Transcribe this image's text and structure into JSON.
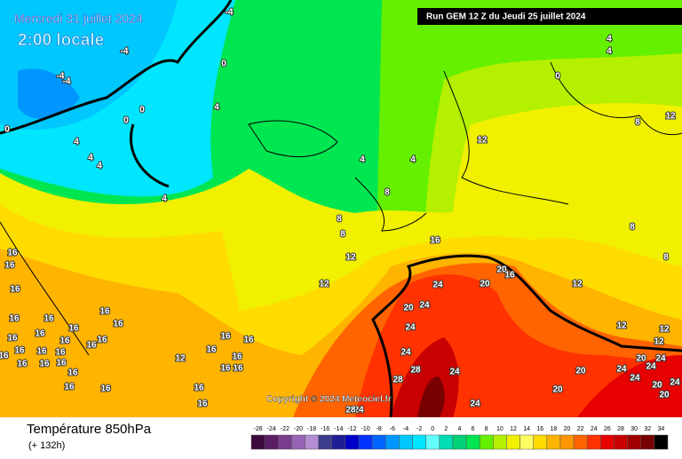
{
  "header": {
    "title": "Mercredi 31 juillet 2024",
    "subtitle": "2:00 locale",
    "run": "Run GEM 12 Z du Jeudi 25 juillet 2024"
  },
  "copyright": "Copyright © 2024 Meteociel.fr",
  "footer": {
    "title": "Température 850hPa",
    "subtitle": "(+ 132h)"
  },
  "legend": {
    "values": [
      -26,
      -24,
      -22,
      -20,
      -18,
      -16,
      -14,
      -12,
      -10,
      -8,
      -6,
      -4,
      -2,
      0,
      2,
      4,
      6,
      8,
      10,
      12,
      14,
      16,
      18,
      20,
      22,
      24,
      26,
      28,
      30,
      32,
      34
    ],
    "colors": [
      "#3c0a3c",
      "#5a1e64",
      "#783c8c",
      "#9664b4",
      "#b48cd2",
      "#3c3c8c",
      "#1e1e96",
      "#0000c8",
      "#0032ff",
      "#0064ff",
      "#0096ff",
      "#00c8ff",
      "#00e6ff",
      "#64ffff",
      "#00dcb4",
      "#00d278",
      "#00e650",
      "#64f000",
      "#b4f000",
      "#f0f000",
      "#ffff64",
      "#ffdc00",
      "#ffb400",
      "#ff9600",
      "#ff6400",
      "#ff3200",
      "#e60000",
      "#c80000",
      "#a00000",
      "#780000",
      "#000000"
    ]
  },
  "map": {
    "contour_labels": [
      -4,
      -4,
      -4,
      -4,
      0,
      0,
      0,
      4,
      4,
      4,
      4,
      4,
      0,
      0,
      4,
      4,
      4,
      4,
      8,
      8,
      8,
      12,
      12,
      8,
      16,
      8,
      8,
      12,
      12,
      12,
      24,
      20,
      20,
      16,
      20,
      24,
      24,
      24,
      28,
      28,
      24,
      24,
      20,
      20,
      20,
      24,
      24,
      24,
      24,
      20,
      20,
      24,
      24,
      28,
      12,
      12,
      12,
      16,
      16,
      16,
      16,
      16,
      16,
      16,
      16,
      16,
      16,
      16,
      16,
      16,
      16,
      16,
      16,
      16,
      16,
      16,
      16,
      16,
      16,
      12,
      16,
      16,
      16,
      16,
      16,
      16,
      16,
      16,
      16
    ]
  }
}
